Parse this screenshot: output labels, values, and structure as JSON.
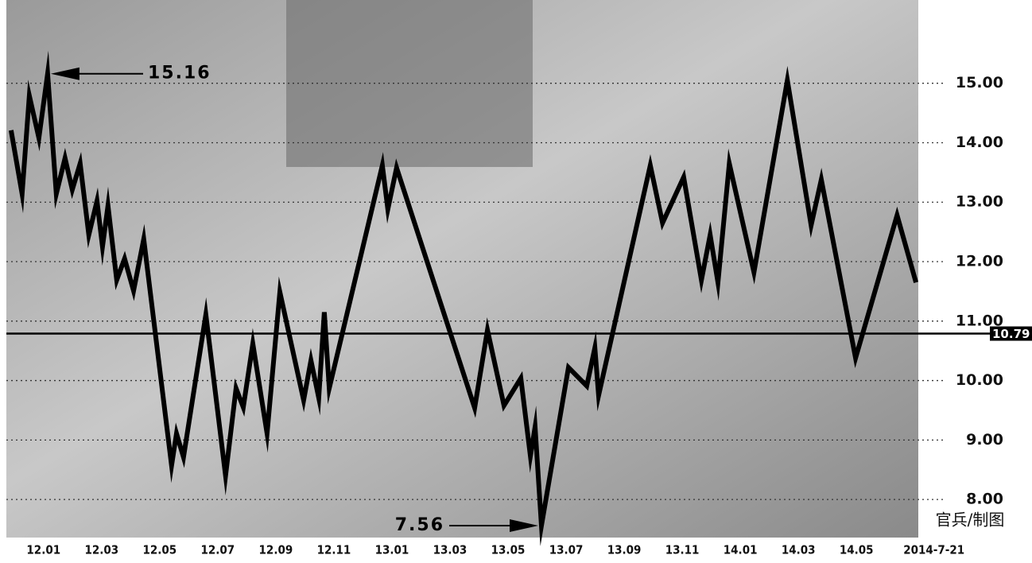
{
  "chart_data": {
    "type": "line",
    "x": [
      -1.12,
      -0.74,
      -0.49,
      -0.16,
      0.14,
      0.44,
      0.74,
      0.99,
      1.26,
      1.56,
      1.84,
      2.03,
      2.22,
      2.52,
      2.79,
      3.1,
      3.45,
      4.41,
      4.58,
      4.82,
      5.59,
      6.27,
      6.63,
      6.88,
      7.21,
      7.7,
      8.14,
      8.96,
      9.21,
      9.48,
      9.67,
      9.84,
      11.67,
      11.86,
      12.16,
      14.85,
      15.29,
      15.86,
      16.44,
      16.77,
      16.93,
      17.15,
      18.08,
      18.71,
      18.99,
      19.12,
      20.9,
      21.32,
      22.05,
      22.66,
      22.96,
      23.23,
      23.62,
      24.47,
      25.62,
      26.44,
      26.79,
      27.97,
      29.4,
      30.05
    ],
    "values": [
      14.21,
      13.14,
      14.79,
      14.08,
      15.16,
      13.14,
      13.74,
      13.21,
      13.65,
      12.45,
      13.02,
      12.25,
      12.94,
      11.69,
      12.05,
      11.51,
      12.38,
      8.57,
      9.11,
      8.71,
      11.11,
      8.4,
      9.87,
      9.55,
      10.62,
      9.11,
      11.49,
      9.67,
      10.34,
      9.71,
      11.15,
      9.87,
      13.62,
      12.88,
      13.58,
      9.54,
      10.85,
      9.58,
      10.04,
      8.73,
      9.22,
      7.56,
      10.22,
      9.91,
      10.55,
      9.75,
      13.62,
      12.65,
      13.42,
      11.69,
      12.45,
      11.65,
      13.65,
      11.82,
      15.05,
      12.61,
      13.38,
      10.38,
      12.78,
      11.65
    ],
    "color": "#000000",
    "xlim": [
      -1.5,
      31.5
    ],
    "xticks": [
      {
        "value": 0,
        "label": "12.01"
      },
      {
        "value": 2,
        "label": "12.03"
      },
      {
        "value": 4,
        "label": "12.05"
      },
      {
        "value": 6,
        "label": "12.07"
      },
      {
        "value": 8,
        "label": "12.09"
      },
      {
        "value": 10,
        "label": "12.11"
      },
      {
        "value": 12,
        "label": "13.01"
      },
      {
        "value": 14,
        "label": "13.03"
      },
      {
        "value": 16,
        "label": "13.05"
      },
      {
        "value": 18,
        "label": "13.07"
      },
      {
        "value": 20,
        "label": "13.09"
      },
      {
        "value": 22,
        "label": "13.11"
      },
      {
        "value": 24,
        "label": "14.01"
      },
      {
        "value": 26,
        "label": "14.03"
      },
      {
        "value": 28,
        "label": "14.05"
      },
      {
        "value": 30.67,
        "label": "2014-7-21"
      }
    ],
    "ylim": [
      7.4,
      16.4
    ],
    "yticks": [
      {
        "value": 8,
        "label": "8.00"
      },
      {
        "value": 9,
        "label": "9.00"
      },
      {
        "value": 10,
        "label": "10.00"
      },
      {
        "value": 11,
        "label": "11.00"
      },
      {
        "value": 12,
        "label": "12.00"
      },
      {
        "value": 13,
        "label": "13.00"
      },
      {
        "value": 14,
        "label": "14.00"
      },
      {
        "value": 15,
        "label": "15.00"
      }
    ],
    "grid": true,
    "max_label": 15.16,
    "min_label": 7.56,
    "ref_line": 10.79,
    "credit": "官兵/制图"
  }
}
